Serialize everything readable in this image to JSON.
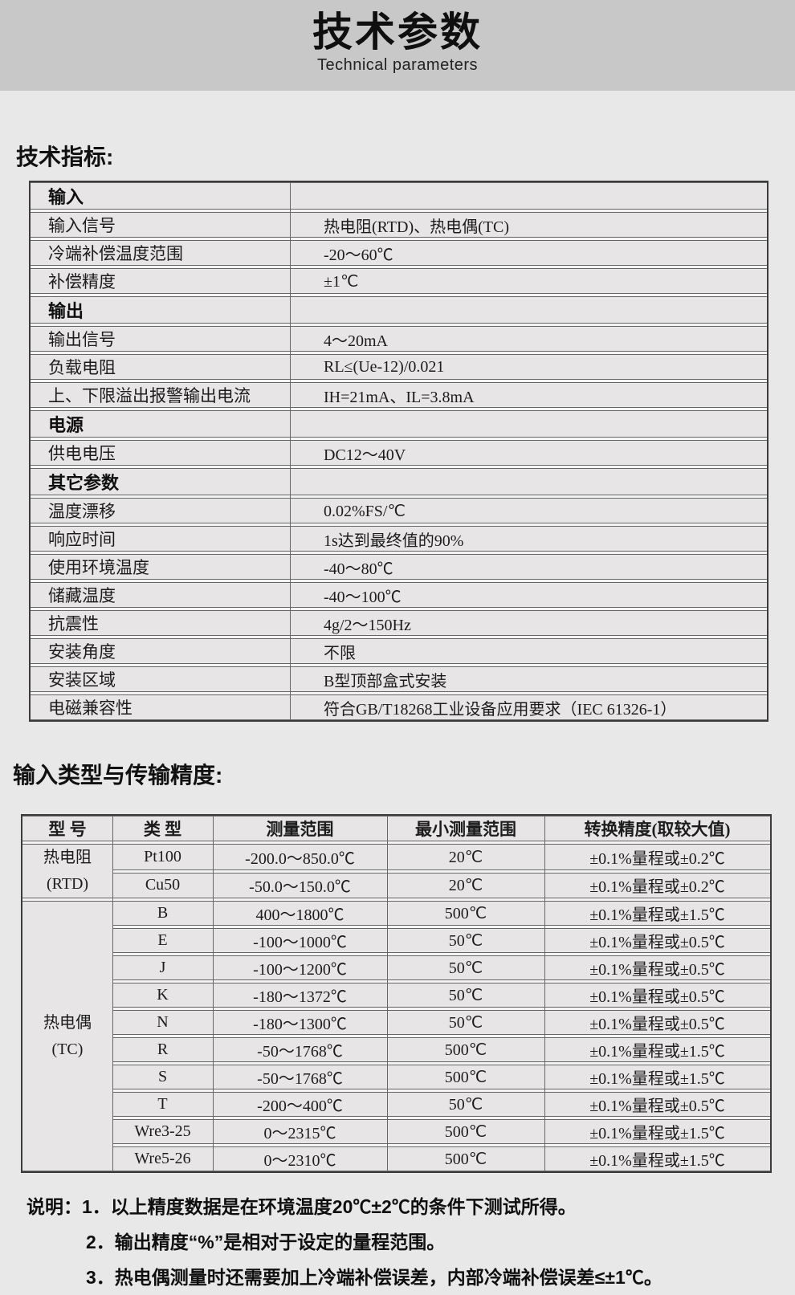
{
  "page": {
    "title": "技术参数",
    "subtitle": "Technical parameters"
  },
  "colors": {
    "band_bg": "#c9c8c9",
    "page_bg": "#e9e8e9",
    "cell_bg": "#e7e5e6",
    "row_gap": "#f5f4f5",
    "inner_line": "#666666",
    "outer_border": "#3c3c3c",
    "text": "#1a1a1a"
  },
  "sections": {
    "specs_heading": "技术指标:",
    "accuracy_heading": "输入类型与传输精度:"
  },
  "specs_table": {
    "rows": [
      {
        "type": "section",
        "label": "输入",
        "value": ""
      },
      {
        "type": "item",
        "label": "输入信号",
        "value": "热电阻(RTD)、热电偶(TC)"
      },
      {
        "type": "item",
        "label": "冷端补偿温度范围",
        "value": "-20～60℃"
      },
      {
        "type": "item",
        "label": "补偿精度",
        "value": "±1℃"
      },
      {
        "type": "section",
        "label": "输出",
        "value": ""
      },
      {
        "type": "item",
        "label": "输出信号",
        "value": "4～20mA"
      },
      {
        "type": "item",
        "label": "负载电阻",
        "value": "RL≤(Ue-12)/0.021"
      },
      {
        "type": "item",
        "label": "上、下限溢出报警输出电流",
        "value": "IH=21mA、IL=3.8mA"
      },
      {
        "type": "section",
        "label": "电源",
        "value": ""
      },
      {
        "type": "item",
        "label": "供电电压",
        "value": "DC12～40V"
      },
      {
        "type": "section",
        "label": "其它参数",
        "value": ""
      },
      {
        "type": "item",
        "label": "温度漂移",
        "value": "0.02%FS/℃"
      },
      {
        "type": "item",
        "label": "响应时间",
        "value": "1s达到最终值的90%"
      },
      {
        "type": "item",
        "label": "使用环境温度",
        "value": "-40～80℃"
      },
      {
        "type": "item",
        "label": "储藏温度",
        "value": "-40～100℃"
      },
      {
        "type": "item",
        "label": "抗震性",
        "value": "4g/2～150Hz"
      },
      {
        "type": "item",
        "label": "安装角度",
        "value": "不限"
      },
      {
        "type": "item",
        "label": "安装区域",
        "value": "B型顶部盒式安装"
      },
      {
        "type": "item",
        "label": "电磁兼容性",
        "value": "符合GB/T18268工业设备应用要求（IEC 61326-1）"
      }
    ]
  },
  "accuracy_table": {
    "headers": [
      "型 号",
      "类 型",
      "测量范围",
      "最小测量范围",
      "转换精度(取较大值)"
    ],
    "groups": [
      {
        "model_lines": [
          "热电阻",
          "(RTD)"
        ],
        "rows": [
          [
            "Pt100",
            "-200.0～850.0℃",
            "20℃",
            "±0.1%量程或±0.2℃"
          ],
          [
            "Cu50",
            "-50.0～150.0℃",
            "20℃",
            "±0.1%量程或±0.2℃"
          ]
        ]
      },
      {
        "model_lines": [
          "热电偶",
          "(TC)"
        ],
        "rows": [
          [
            "B",
            "400～1800℃",
            "500℃",
            "±0.1%量程或±1.5℃"
          ],
          [
            "E",
            "-100～1000℃",
            "50℃",
            "±0.1%量程或±0.5℃"
          ],
          [
            "J",
            "-100～1200℃",
            "50℃",
            "±0.1%量程或±0.5℃"
          ],
          [
            "K",
            "-180～1372℃",
            "50℃",
            "±0.1%量程或±0.5℃"
          ],
          [
            "N",
            "-180～1300℃",
            "50℃",
            "±0.1%量程或±0.5℃"
          ],
          [
            "R",
            "-50～1768℃",
            "500℃",
            "±0.1%量程或±1.5℃"
          ],
          [
            "S",
            "-50～1768℃",
            "500℃",
            "±0.1%量程或±1.5℃"
          ],
          [
            "T",
            "-200～400℃",
            "50℃",
            "±0.1%量程或±0.5℃"
          ],
          [
            "Wre3-25",
            "0～2315℃",
            "500℃",
            "±0.1%量程或±1.5℃"
          ],
          [
            "Wre5-26",
            "0～2310℃",
            "500℃",
            "±0.1%量程或±1.5℃"
          ]
        ]
      }
    ]
  },
  "notes": {
    "prefix": "说明：",
    "items": [
      "1．以上精度数据是在环境温度20℃±2℃的条件下测试所得。",
      "2．输出精度“%”是相对于设定的量程范围。",
      "3．热电偶测量时还需要加上冷端补偿误差，内部冷端补偿误差≤±1℃。"
    ]
  }
}
